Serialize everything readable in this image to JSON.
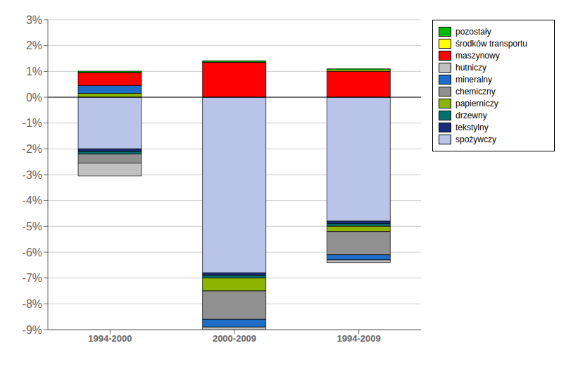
{
  "chart_data": {
    "type": "bar",
    "stacked": true,
    "grid": true,
    "legend": "upper right",
    "categories": [
      "1994-2000",
      "2000-2009",
      "1994-2009"
    ],
    "series": [
      {
        "name": "spożywczy",
        "color": "#b8c4e8",
        "values": [
          -0.02,
          -0.068,
          -0.048
        ]
      },
      {
        "name": "tekstylny",
        "color": "#1a2f7a",
        "values": [
          -0.001,
          -0.001,
          -0.001
        ]
      },
      {
        "name": "drzewny",
        "color": "#007070",
        "values": [
          -0.001,
          -0.001,
          -0.001
        ]
      },
      {
        "name": "papierniczy",
        "color": "#8db500",
        "values": [
          0.0015,
          -0.005,
          -0.002
        ]
      },
      {
        "name": "chemiczny",
        "color": "#909090",
        "values": [
          -0.0035,
          -0.011,
          -0.009
        ]
      },
      {
        "name": "mineralny",
        "color": "#1e6ec8",
        "values": [
          0.003,
          -0.003,
          -0.002
        ]
      },
      {
        "name": "hutniczy",
        "color": "#c0c0c0",
        "values": [
          -0.005,
          -0.001,
          -0.001
        ]
      },
      {
        "name": "maszynowy",
        "color": "#ff0000",
        "values": [
          0.005,
          0.0135,
          0.01
        ]
      },
      {
        "name": "środków transportu",
        "color": "#ffff00",
        "values": [
          0.0001,
          0.0001,
          0.0005
        ]
      },
      {
        "name": "pozostały",
        "color": "#00bb00",
        "values": [
          0.0005,
          0.0005,
          0.0005
        ]
      }
    ],
    "ylim": [
      -0.09,
      0.03
    ],
    "yticks": [
      {
        "value": -0.09,
        "label": "-9%"
      },
      {
        "value": -0.08,
        "label": "-8%"
      },
      {
        "value": -0.07,
        "label": "-7%"
      },
      {
        "value": -0.06,
        "label": "-6%"
      },
      {
        "value": -0.05,
        "label": "-5%"
      },
      {
        "value": -0.04,
        "label": "-4%"
      },
      {
        "value": -0.03,
        "label": "-3%"
      },
      {
        "value": -0.02,
        "label": "-2%"
      },
      {
        "value": -0.01,
        "label": "-1%"
      },
      {
        "value": 0.0,
        "label": "0%"
      },
      {
        "value": 0.01,
        "label": "1%"
      },
      {
        "value": 0.02,
        "label": "2%"
      },
      {
        "value": 0.03,
        "label": "3%"
      }
    ]
  }
}
